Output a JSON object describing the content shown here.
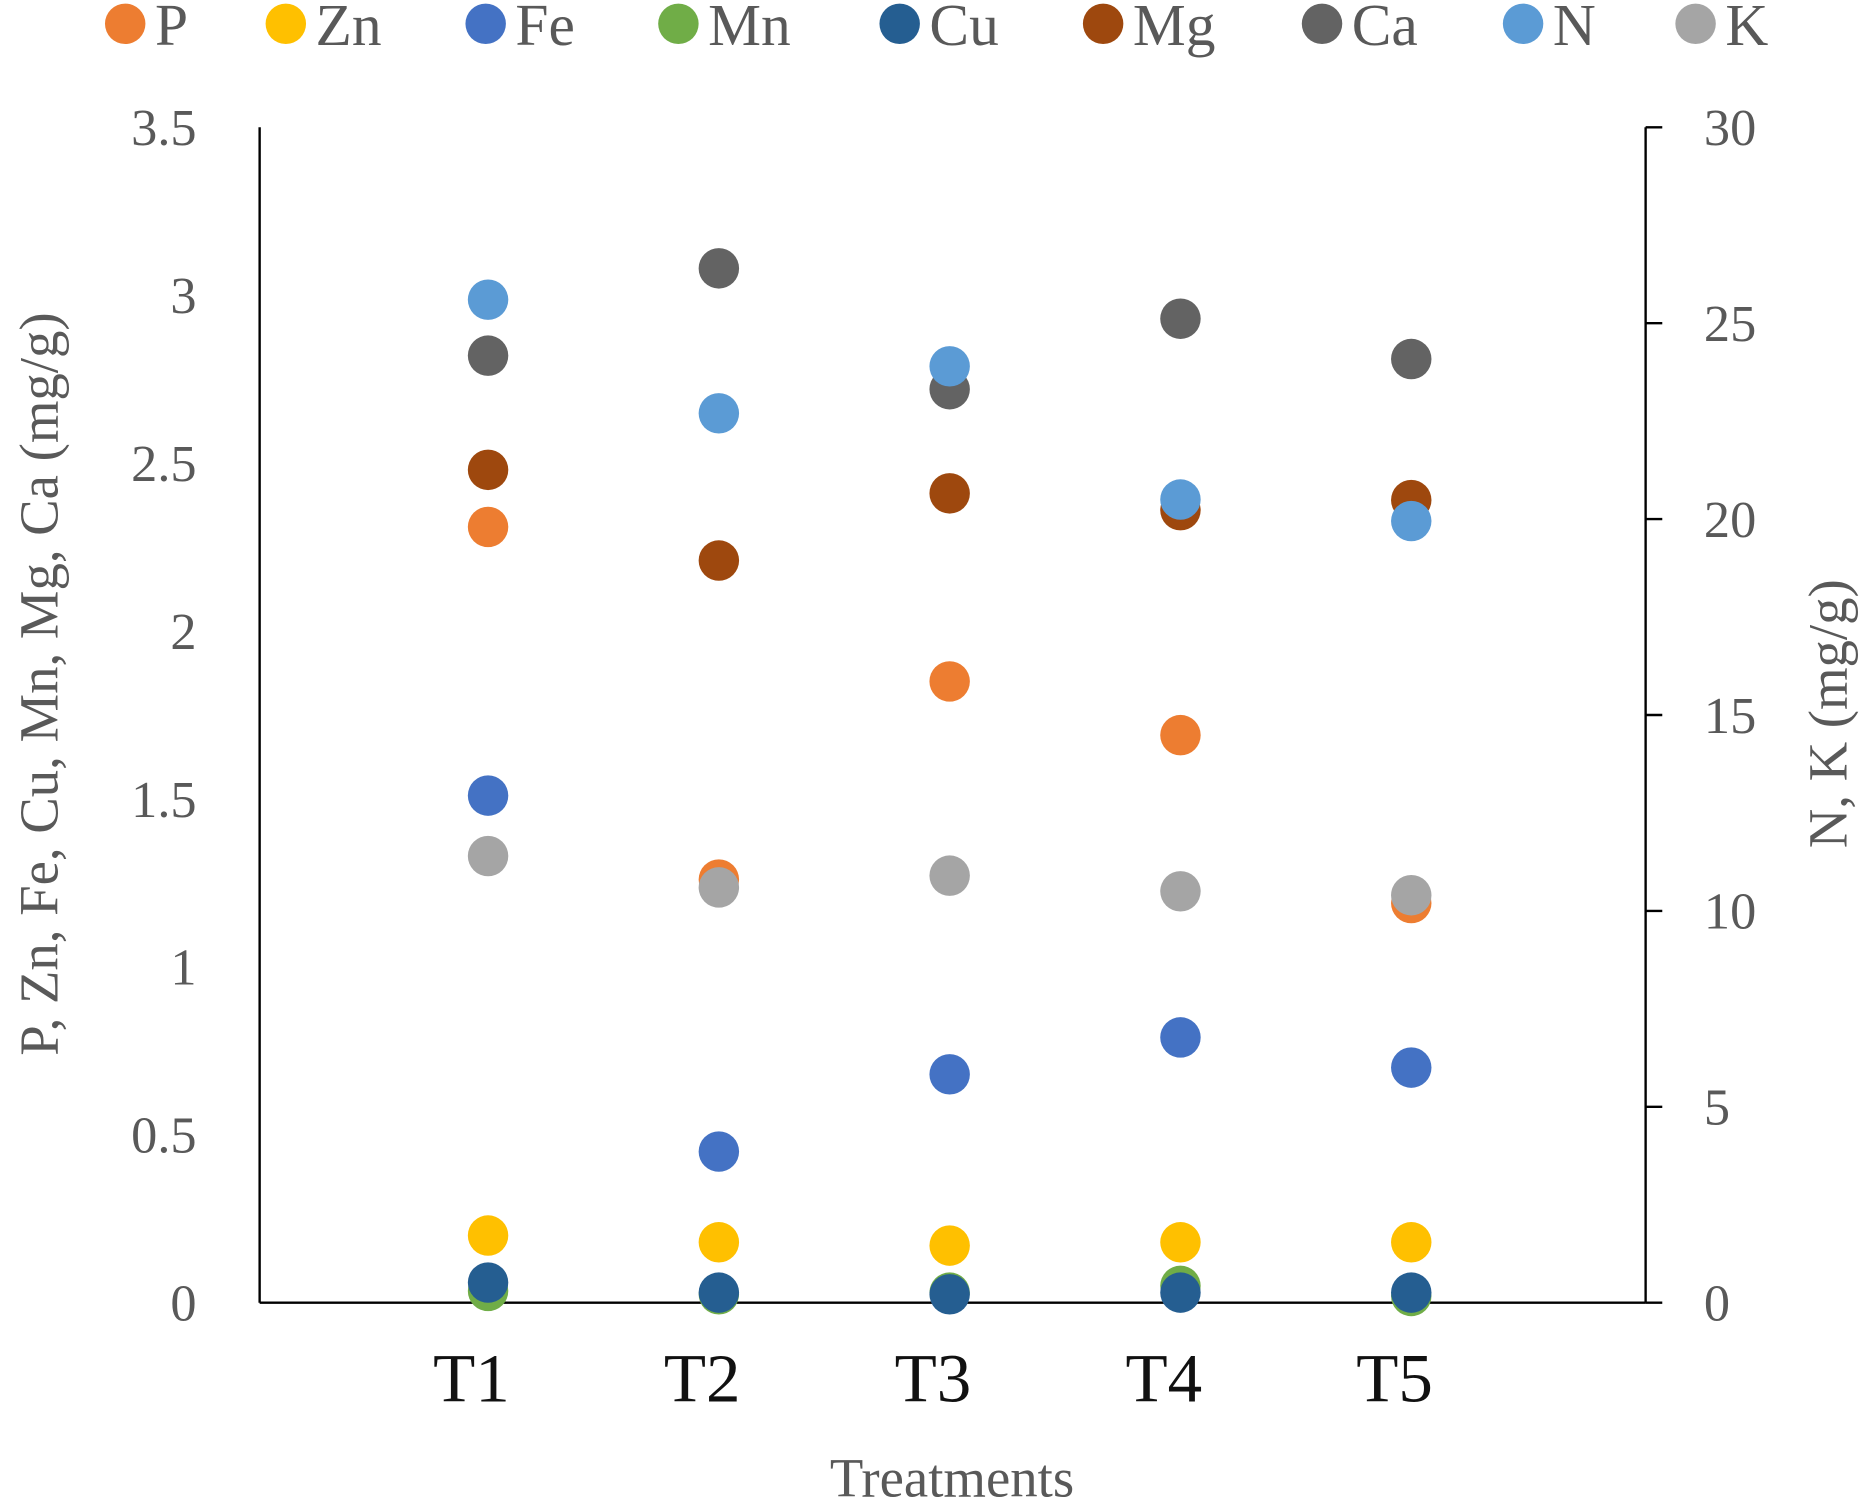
{
  "chart_data": {
    "type": "scatter",
    "title": "",
    "xlabel": "Treatments",
    "ylabel_left": "P, Zn, Fe, Cu, Mn, Mg, Ca (mg/g)",
    "ylabel_right": "N, K (mg/g)",
    "categories": [
      "T1",
      "T2",
      "T3",
      "T4",
      "T5"
    ],
    "ylim_left": [
      0,
      3.5
    ],
    "yticks_left": [
      "0",
      "0.5",
      "1",
      "1.5",
      "2",
      "2.5",
      "3",
      "3.5"
    ],
    "ylim_right": [
      0,
      30
    ],
    "yticks_right": [
      "0",
      "5",
      "10",
      "15",
      "20",
      "25",
      "30"
    ],
    "legend_position": "top",
    "grid": false,
    "series": [
      {
        "name": "P",
        "axis": "left",
        "color": "#ED7D31",
        "values": [
          2.31,
          1.26,
          1.85,
          1.69,
          1.19
        ]
      },
      {
        "name": "Zn",
        "axis": "left",
        "color": "#FFC000",
        "values": [
          0.2,
          0.18,
          0.17,
          0.18,
          0.18
        ]
      },
      {
        "name": "Fe",
        "axis": "left",
        "color": "#4472C4",
        "values": [
          1.51,
          0.45,
          0.68,
          0.79,
          0.7
        ]
      },
      {
        "name": "Mn",
        "axis": "left",
        "color": "#70AD47",
        "values": [
          0.035,
          0.025,
          0.03,
          0.05,
          0.02
        ]
      },
      {
        "name": "Cu",
        "axis": "left",
        "color": "#255E91",
        "values": [
          0.06,
          0.03,
          0.025,
          0.03,
          0.03
        ]
      },
      {
        "name": "Mg",
        "axis": "left",
        "color": "#9E480E",
        "values": [
          2.48,
          2.21,
          2.41,
          2.36,
          2.39
        ]
      },
      {
        "name": "Ca",
        "axis": "left",
        "color": "#636363",
        "values": [
          2.82,
          3.08,
          2.72,
          2.93,
          2.81
        ]
      },
      {
        "name": "N",
        "axis": "right",
        "color": "#5B9BD5",
        "values": [
          25.6,
          22.7,
          23.9,
          20.5,
          19.95
        ]
      },
      {
        "name": "K",
        "axis": "right",
        "color": "#A5A5A5",
        "values": [
          11.4,
          10.6,
          10.9,
          10.5,
          10.4
        ]
      }
    ]
  }
}
